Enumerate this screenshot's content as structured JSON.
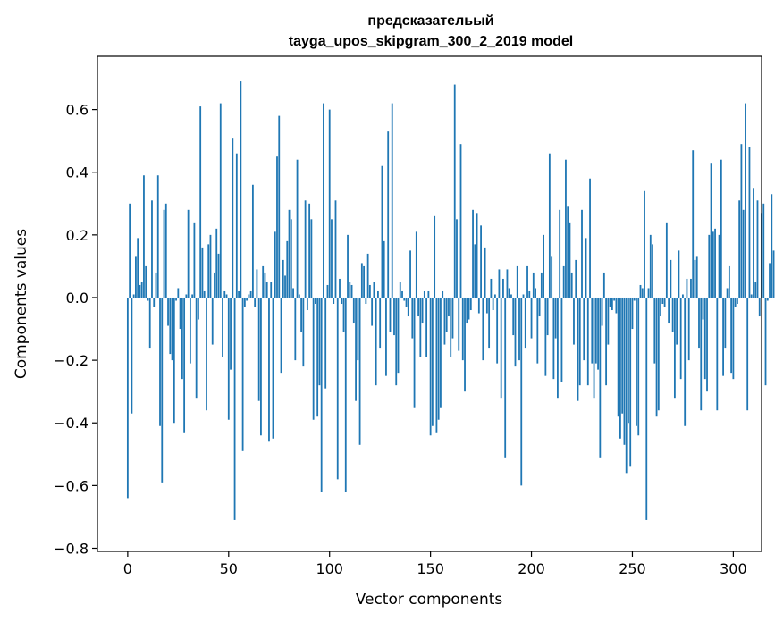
{
  "chart_data": {
    "type": "bar",
    "title": "предсказательый\ntayga_upos_skipgram_300_2_2019 model",
    "xlabel": "Vector components",
    "ylabel": "Components values",
    "xlim": [
      -15,
      314
    ],
    "ylim": [
      -0.81,
      0.77
    ],
    "xticks": [
      0,
      50,
      100,
      150,
      200,
      250,
      300
    ],
    "yticks": [
      -0.8,
      -0.6,
      -0.4,
      -0.2,
      0.0,
      0.2,
      0.4,
      0.6
    ],
    "ytick_labels": [
      "−0.8",
      "−0.6",
      "−0.4",
      "−0.2",
      "0.0",
      "0.2",
      "0.4",
      "0.6"
    ],
    "grid": false,
    "legend": "none",
    "color": "#1f77b4",
    "x_start": 0,
    "values": [
      -0.64,
      0.3,
      -0.37,
      0.01,
      0.13,
      0.19,
      0.04,
      0.05,
      0.39,
      0.1,
      -0.01,
      -0.16,
      0.31,
      -0.03,
      0.08,
      0.39,
      -0.41,
      -0.59,
      0.28,
      0.3,
      -0.09,
      -0.18,
      -0.2,
      -0.4,
      -0.01,
      0.03,
      -0.1,
      -0.26,
      -0.43,
      0.01,
      0.28,
      -0.21,
      0.01,
      0.24,
      -0.32,
      -0.07,
      0.61,
      0.16,
      0.02,
      -0.36,
      0.17,
      0.2,
      -0.15,
      0.08,
      0.22,
      0.14,
      0.62,
      -0.19,
      0.02,
      0.01,
      -0.39,
      -0.23,
      0.51,
      -0.71,
      0.46,
      0.02,
      0.69,
      -0.49,
      -0.03,
      -0.01,
      0.01,
      0.02,
      0.36,
      -0.03,
      0.09,
      -0.33,
      -0.44,
      0.1,
      0.08,
      0.05,
      -0.46,
      0.05,
      -0.45,
      0.21,
      0.45,
      0.58,
      -0.24,
      0.12,
      0.07,
      0.18,
      0.28,
      0.25,
      0.03,
      -0.2,
      0.44,
      0.01,
      -0.11,
      -0.22,
      0.31,
      -0.04,
      0.3,
      0.25,
      -0.39,
      -0.02,
      -0.38,
      -0.28,
      -0.62,
      0.62,
      -0.29,
      0.04,
      0.6,
      0.25,
      -0.02,
      0.31,
      -0.58,
      0.06,
      -0.02,
      -0.11,
      -0.62,
      0.2,
      0.05,
      0.04,
      -0.08,
      -0.33,
      -0.2,
      -0.47,
      0.11,
      0.1,
      -0.02,
      0.14,
      0.04,
      -0.09,
      0.05,
      -0.28,
      0.02,
      -0.16,
      0.42,
      0.18,
      -0.25,
      0.53,
      -0.11,
      0.62,
      -0.12,
      -0.28,
      -0.24,
      0.05,
      0.02,
      -0.01,
      -0.03,
      -0.06,
      0.15,
      -0.13,
      -0.35,
      0.21,
      -0.06,
      -0.19,
      -0.08,
      0.02,
      -0.19,
      0.02,
      -0.44,
      -0.41,
      0.26,
      -0.43,
      -0.39,
      -0.35,
      0.02,
      -0.15,
      -0.11,
      -0.06,
      -0.19,
      -0.13,
      0.68,
      0.25,
      -0.17,
      0.49,
      -0.2,
      -0.3,
      -0.08,
      -0.07,
      -0.04,
      0.28,
      0.17,
      0.27,
      -0.05,
      0.23,
      -0.2,
      0.16,
      -0.05,
      -0.16,
      0.06,
      -0.04,
      0.01,
      -0.21,
      0.09,
      -0.32,
      0.06,
      -0.51,
      0.09,
      0.03,
      0.01,
      -0.12,
      -0.22,
      0.1,
      -0.2,
      -0.6,
      0.01,
      -0.16,
      0.1,
      0.02,
      -0.13,
      0.08,
      0.03,
      -0.21,
      -0.06,
      0.08,
      0.2,
      -0.25,
      -0.12,
      0.46,
      0.13,
      -0.26,
      -0.13,
      -0.32,
      0.28,
      -0.27,
      0.1,
      0.44,
      0.29,
      0.24,
      0.08,
      -0.15,
      0.12,
      -0.33,
      -0.28,
      0.28,
      -0.2,
      0.19,
      -0.28,
      0.38,
      -0.21,
      -0.32,
      -0.21,
      -0.23,
      -0.51,
      -0.09,
      0.08,
      -0.28,
      -0.15,
      -0.03,
      -0.04,
      -0.01,
      -0.05,
      -0.38,
      -0.45,
      -0.37,
      -0.47,
      -0.56,
      -0.4,
      -0.54,
      -0.1,
      -0.01,
      -0.41,
      -0.44,
      0.04,
      0.03,
      0.34,
      -0.71,
      0.03,
      0.2,
      0.17,
      -0.21,
      -0.38,
      -0.36,
      -0.06,
      -0.02,
      -0.03,
      0.24,
      -0.08,
      0.12,
      -0.11,
      -0.32,
      -0.15,
      0.15,
      -0.26,
      0.01,
      -0.41,
      0.06,
      -0.2,
      0.06,
      0.47,
      0.12,
      0.13,
      -0.16,
      -0.36,
      -0.07,
      -0.26,
      -0.3,
      0.2,
      0.43,
      0.21,
      0.22,
      -0.36,
      0.2,
      0.44,
      -0.25,
      -0.16,
      0.03,
      0.1,
      -0.24,
      -0.26,
      -0.03,
      -0.02,
      0.31,
      0.49,
      0.28,
      0.62,
      -0.36,
      0.48,
      0.01,
      0.35,
      0.05,
      0.31,
      -0.06,
      0.27,
      0.3,
      -0.28,
      -0.01,
      0.11,
      0.33,
      0.15
    ]
  }
}
